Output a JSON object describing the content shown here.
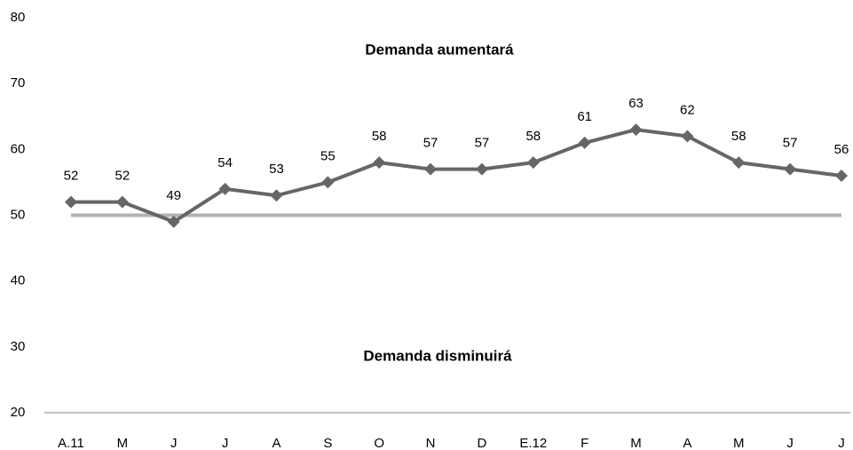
{
  "chart_data": {
    "type": "line",
    "categories": [
      "A.11",
      "M",
      "J",
      "J",
      "A",
      "S",
      "O",
      "N",
      "D",
      "E.12",
      "F",
      "M",
      "A",
      "M",
      "J",
      "J"
    ],
    "series": [
      {
        "name": null,
        "color": "#666666",
        "values": [
          52,
          52,
          49,
          54,
          53,
          55,
          58,
          57,
          57,
          58,
          61,
          63,
          62,
          58,
          57,
          56
        ]
      }
    ],
    "reference_line": {
      "value": 50,
      "color": "#b3b3b3"
    },
    "annotations": [
      "Demanda aumentará",
      "Demanda disminuirá"
    ],
    "ylim": [
      20,
      80
    ],
    "yticks": [
      20,
      30,
      40,
      50,
      60,
      70,
      80
    ],
    "grid": false
  }
}
